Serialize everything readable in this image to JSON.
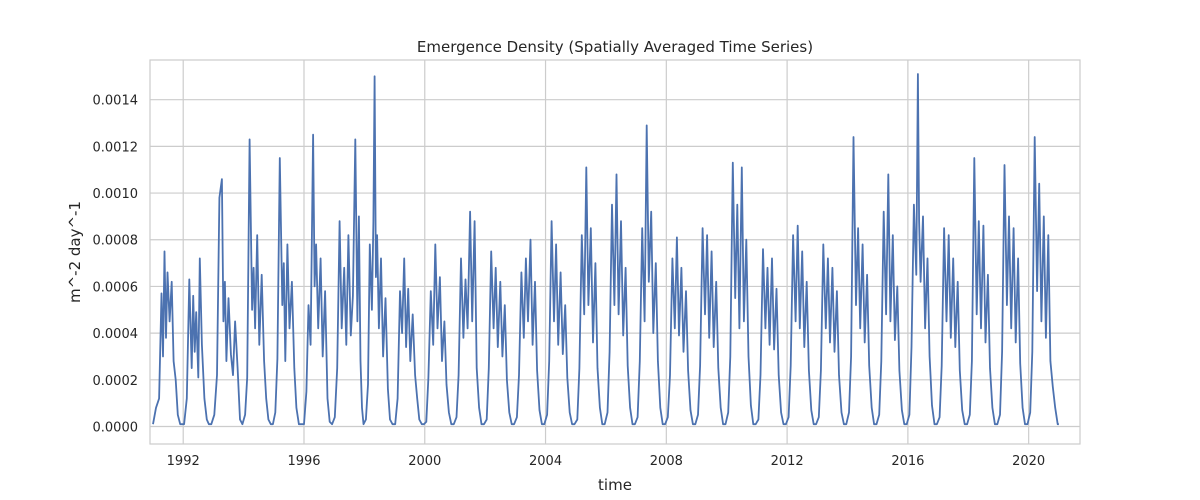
{
  "chart_data": {
    "type": "line",
    "title": "Emergence Density (Spatially Averaged Time Series)",
    "xlabel": "time",
    "ylabel": "m^-2 day^-1",
    "xlim": [
      1990.9,
      2021.7
    ],
    "ylim": [
      -7.5e-05,
      0.00157
    ],
    "x_ticks": [
      1992,
      1996,
      2000,
      2004,
      2008,
      2012,
      2016,
      2020
    ],
    "x_tick_labels": [
      "1992",
      "1996",
      "2000",
      "2004",
      "2008",
      "2012",
      "2016",
      "2020"
    ],
    "y_ticks": [
      0,
      0.0002,
      0.0004,
      0.0006,
      0.0008,
      0.001,
      0.0012,
      0.0014
    ],
    "y_tick_labels": [
      "0.0000",
      "0.0002",
      "0.0004",
      "0.0006",
      "0.0008",
      "0.0010",
      "0.0012",
      "0.0014"
    ],
    "grid": true,
    "series_color": "#4c72b0",
    "grid_color": "#cccccc",
    "frame_color": "#cccccc",
    "series": [
      {
        "x": [
          1991.0,
          1991.1,
          1991.2,
          1991.28,
          1991.33,
          1991.38,
          1991.43,
          1991.48,
          1991.55,
          1991.62,
          1991.68,
          1991.75,
          1991.82,
          1991.9,
          1991.97,
          1992.03,
          1992.12,
          1992.2,
          1992.28,
          1992.33,
          1992.38,
          1992.43,
          1992.5,
          1992.55,
          1992.62,
          1992.7,
          1992.78,
          1992.85,
          1992.93,
          1993.03,
          1993.12,
          1993.2,
          1993.28,
          1993.33,
          1993.38,
          1993.43,
          1993.5,
          1993.58,
          1993.65,
          1993.72,
          1993.8,
          1993.88,
          1993.96,
          1994.05,
          1994.12,
          1994.2,
          1994.28,
          1994.33,
          1994.38,
          1994.45,
          1994.52,
          1994.6,
          1994.68,
          1994.75,
          1994.82,
          1994.9,
          1994.97,
          1995.05,
          1995.12,
          1995.2,
          1995.28,
          1995.33,
          1995.38,
          1995.45,
          1995.52,
          1995.6,
          1995.68,
          1995.75,
          1995.83,
          1995.92,
          1996.0,
          1996.08,
          1996.15,
          1996.22,
          1996.3,
          1996.35,
          1996.4,
          1996.47,
          1996.55,
          1996.62,
          1996.7,
          1996.78,
          1996.85,
          1996.93,
          1997.02,
          1997.1,
          1997.18,
          1997.25,
          1997.33,
          1997.4,
          1997.47,
          1997.55,
          1997.62,
          1997.7,
          1997.77,
          1997.82,
          1997.87,
          1997.92,
          1997.97,
          1998.05,
          1998.12,
          1998.18,
          1998.25,
          1998.3,
          1998.34,
          1998.38,
          1998.42,
          1998.48,
          1998.55,
          1998.62,
          1998.7,
          1998.78,
          1998.85,
          1998.93,
          1999.02,
          1999.1,
          1999.18,
          1999.25,
          1999.32,
          1999.38,
          1999.45,
          1999.52,
          1999.6,
          1999.68,
          1999.75,
          1999.82,
          1999.9,
          1999.97,
          2000.05,
          2000.12,
          2000.2,
          2000.28,
          2000.35,
          2000.42,
          2000.5,
          2000.57,
          2000.65,
          2000.72,
          2000.8,
          2000.88,
          2000.96,
          2001.05,
          2001.12,
          2001.2,
          2001.28,
          2001.35,
          2001.42,
          2001.5,
          2001.57,
          2001.65,
          2001.72,
          2001.8,
          2001.88,
          2001.96,
          2002.05,
          2002.12,
          2002.2,
          2002.28,
          2002.35,
          2002.42,
          2002.5,
          2002.57,
          2002.65,
          2002.72,
          2002.8,
          2002.88,
          2002.96,
          2003.05,
          2003.12,
          2003.2,
          2003.28,
          2003.35,
          2003.42,
          2003.5,
          2003.57,
          2003.65,
          2003.72,
          2003.8,
          2003.88,
          2003.96,
          2004.05,
          2004.12,
          2004.2,
          2004.28,
          2004.35,
          2004.42,
          2004.5,
          2004.57,
          2004.65,
          2004.72,
          2004.8,
          2004.88,
          2004.96,
          2005.05,
          2005.12,
          2005.2,
          2005.28,
          2005.35,
          2005.42,
          2005.5,
          2005.57,
          2005.65,
          2005.72,
          2005.8,
          2005.88,
          2005.96,
          2006.05,
          2006.12,
          2006.2,
          2006.28,
          2006.35,
          2006.42,
          2006.5,
          2006.57,
          2006.65,
          2006.72,
          2006.8,
          2006.88,
          2006.96,
          2007.05,
          2007.12,
          2007.2,
          2007.28,
          2007.35,
          2007.42,
          2007.5,
          2007.57,
          2007.65,
          2007.72,
          2007.8,
          2007.88,
          2007.96,
          2008.05,
          2008.12,
          2008.2,
          2008.28,
          2008.35,
          2008.42,
          2008.5,
          2008.57,
          2008.65,
          2008.72,
          2008.8,
          2008.88,
          2008.96,
          2009.05,
          2009.12,
          2009.2,
          2009.28,
          2009.35,
          2009.42,
          2009.5,
          2009.57,
          2009.65,
          2009.72,
          2009.8,
          2009.88,
          2009.96,
          2010.05,
          2010.12,
          2010.2,
          2010.28,
          2010.35,
          2010.42,
          2010.5,
          2010.57,
          2010.65,
          2010.72,
          2010.8,
          2010.88,
          2010.96,
          2011.05,
          2011.12,
          2011.2,
          2011.28,
          2011.35,
          2011.42,
          2011.5,
          2011.57,
          2011.65,
          2011.72,
          2011.8,
          2011.88,
          2011.96,
          2012.05,
          2012.12,
          2012.2,
          2012.28,
          2012.35,
          2012.42,
          2012.5,
          2012.57,
          2012.65,
          2012.72,
          2012.8,
          2012.88,
          2012.96,
          2013.05,
          2013.12,
          2013.2,
          2013.28,
          2013.35,
          2013.42,
          2013.5,
          2013.57,
          2013.65,
          2013.72,
          2013.8,
          2013.88,
          2013.96,
          2014.05,
          2014.12,
          2014.2,
          2014.28,
          2014.35,
          2014.42,
          2014.5,
          2014.57,
          2014.65,
          2014.72,
          2014.8,
          2014.88,
          2014.96,
          2015.05,
          2015.12,
          2015.2,
          2015.28,
          2015.35,
          2015.42,
          2015.5,
          2015.57,
          2015.65,
          2015.72,
          2015.8,
          2015.88,
          2015.96,
          2016.05,
          2016.12,
          2016.2,
          2016.28,
          2016.33,
          2016.37,
          2016.42,
          2016.5,
          2016.57,
          2016.65,
          2016.72,
          2016.8,
          2016.88,
          2016.96,
          2017.05,
          2017.12,
          2017.2,
          2017.28,
          2017.35,
          2017.42,
          2017.5,
          2017.57,
          2017.65,
          2017.72,
          2017.8,
          2017.88,
          2017.96,
          2018.05,
          2018.12,
          2018.2,
          2018.28,
          2018.35,
          2018.42,
          2018.5,
          2018.57,
          2018.65,
          2018.72,
          2018.8,
          2018.88,
          2018.96,
          2019.05,
          2019.12,
          2019.2,
          2019.28,
          2019.35,
          2019.42,
          2019.5,
          2019.57,
          2019.65,
          2019.72,
          2019.8,
          2019.88,
          2019.96,
          2020.05,
          2020.12,
          2020.2,
          2020.28,
          2020.35,
          2020.42,
          2020.5,
          2020.57,
          2020.65,
          2020.72,
          2020.8,
          2020.88,
          2020.96,
          2021.0
        ],
        "y": [
          1e-05,
          8e-05,
          0.00012,
          0.00057,
          0.0003,
          0.00075,
          0.00038,
          0.00066,
          0.00045,
          0.00062,
          0.00028,
          0.0002,
          5e-05,
          1e-05,
          1e-05,
          1e-05,
          0.00012,
          0.00063,
          0.00025,
          0.00056,
          0.00032,
          0.00049,
          0.00021,
          0.00072,
          0.00035,
          0.00012,
          3e-05,
          1e-05,
          1e-05,
          5e-05,
          0.00022,
          0.00098,
          0.00106,
          0.00045,
          0.00062,
          0.00028,
          0.00055,
          0.00031,
          0.00022,
          0.00045,
          0.00025,
          3e-05,
          1e-05,
          5e-05,
          0.00021,
          0.00123,
          0.0005,
          0.00068,
          0.00042,
          0.00082,
          0.00035,
          0.00065,
          0.00028,
          0.00012,
          3e-05,
          1e-05,
          1e-05,
          6e-05,
          0.00029,
          0.00115,
          0.00052,
          0.0007,
          0.00028,
          0.00078,
          0.00042,
          0.00062,
          0.00025,
          8e-05,
          1e-05,
          1e-05,
          1e-05,
          0.00015,
          0.00052,
          0.00035,
          0.00125,
          0.0006,
          0.00078,
          0.00042,
          0.00072,
          0.0003,
          0.00058,
          0.00012,
          2e-05,
          1e-05,
          4e-05,
          0.00025,
          0.00088,
          0.00042,
          0.00068,
          0.00035,
          0.00082,
          0.00039,
          0.00056,
          0.00123,
          0.00045,
          0.0009,
          0.00028,
          8e-05,
          1e-05,
          3e-05,
          0.00018,
          0.00078,
          0.0005,
          0.00088,
          0.0015,
          0.00064,
          0.00082,
          0.00042,
          0.00072,
          0.0003,
          0.00055,
          0.00016,
          3e-05,
          1e-05,
          1e-05,
          0.00012,
          0.00058,
          0.0004,
          0.00072,
          0.00034,
          0.00059,
          0.00028,
          0.00048,
          0.00022,
          0.00012,
          3e-05,
          1e-05,
          1e-05,
          2e-05,
          0.00021,
          0.00058,
          0.00035,
          0.00078,
          0.00042,
          0.00064,
          0.00028,
          0.00045,
          0.00018,
          6e-05,
          1e-05,
          1e-05,
          4e-05,
          0.00022,
          0.00072,
          0.00038,
          0.00063,
          0.00042,
          0.00092,
          0.00045,
          0.00088,
          0.00025,
          8e-05,
          1e-05,
          1e-05,
          3e-05,
          0.00025,
          0.00075,
          0.00042,
          0.00068,
          0.00034,
          0.00062,
          0.0003,
          0.00052,
          0.0002,
          6e-05,
          1e-05,
          1e-05,
          4e-05,
          0.00022,
          0.00066,
          0.00038,
          0.00072,
          0.00045,
          0.0008,
          0.00035,
          0.00062,
          0.00024,
          7e-05,
          1e-05,
          1e-05,
          5e-05,
          0.00028,
          0.00088,
          0.00045,
          0.00078,
          0.00035,
          0.00066,
          0.00031,
          0.00052,
          0.00021,
          6e-05,
          1e-05,
          1e-05,
          3e-05,
          0.00025,
          0.00082,
          0.00048,
          0.00111,
          0.00052,
          0.00085,
          0.00036,
          0.0007,
          0.00025,
          8e-05,
          1e-05,
          1e-05,
          6e-05,
          0.00032,
          0.00095,
          0.00052,
          0.00108,
          0.00048,
          0.00088,
          0.00039,
          0.00068,
          0.00026,
          8e-05,
          1e-05,
          1e-05,
          4e-05,
          0.00028,
          0.00085,
          0.00045,
          0.00129,
          0.00062,
          0.00092,
          0.0004,
          0.0007,
          0.00028,
          8e-05,
          1e-05,
          1e-05,
          4e-05,
          0.00022,
          0.00072,
          0.00042,
          0.00081,
          0.00039,
          0.00068,
          0.00032,
          0.00058,
          0.00024,
          7e-05,
          1e-05,
          1e-05,
          5e-05,
          0.00026,
          0.00085,
          0.00048,
          0.00082,
          0.00038,
          0.00075,
          0.00034,
          0.00062,
          0.00025,
          8e-05,
          1e-05,
          1e-05,
          6e-05,
          0.0003,
          0.00113,
          0.00055,
          0.00095,
          0.00042,
          0.00111,
          0.00045,
          0.0008,
          0.0003,
          9e-05,
          1e-05,
          1e-05,
          3e-05,
          0.00022,
          0.00076,
          0.00042,
          0.00068,
          0.00035,
          0.00072,
          0.00033,
          0.00059,
          0.00022,
          6e-05,
          1e-05,
          1e-05,
          4e-05,
          0.00026,
          0.00082,
          0.00045,
          0.00086,
          0.00042,
          0.00075,
          0.00034,
          0.00062,
          0.00024,
          7e-05,
          1e-05,
          1e-05,
          4e-05,
          0.00024,
          0.00078,
          0.00042,
          0.00072,
          0.00036,
          0.00068,
          0.00032,
          0.00058,
          0.00022,
          6e-05,
          1e-05,
          1e-05,
          6e-05,
          0.0003,
          0.00124,
          0.00052,
          0.00085,
          0.00042,
          0.00078,
          0.00036,
          0.00065,
          0.00026,
          8e-05,
          1e-05,
          1e-05,
          5e-05,
          0.00028,
          0.00092,
          0.00048,
          0.00108,
          0.00045,
          0.00082,
          0.00037,
          0.0006,
          0.00024,
          7e-05,
          1e-05,
          1e-05,
          5e-05,
          0.00034,
          0.00095,
          0.00065,
          0.00151,
          0.00088,
          0.00062,
          0.0009,
          0.00042,
          0.00072,
          0.0003,
          9e-05,
          1e-05,
          1e-05,
          4e-05,
          0.00026,
          0.00085,
          0.00045,
          0.00082,
          0.00038,
          0.00072,
          0.00034,
          0.00062,
          0.00024,
          7e-05,
          1e-05,
          1e-05,
          5e-05,
          0.00028,
          0.00115,
          0.00048,
          0.00088,
          0.00042,
          0.00086,
          0.00036,
          0.00065,
          0.00025,
          8e-05,
          1e-05,
          1e-05,
          5e-05,
          0.00032,
          0.00112,
          0.00052,
          0.0009,
          0.00042,
          0.00085,
          0.00036,
          0.00072,
          0.00027,
          8e-05,
          1e-05,
          1e-05,
          6e-05,
          0.00032,
          0.00124,
          0.00058,
          0.00104,
          0.00045,
          0.0009,
          0.00038,
          0.00082,
          0.00028,
          0.00017,
          8e-05,
          1e-05,
          1e-05
        ]
      }
    ]
  }
}
